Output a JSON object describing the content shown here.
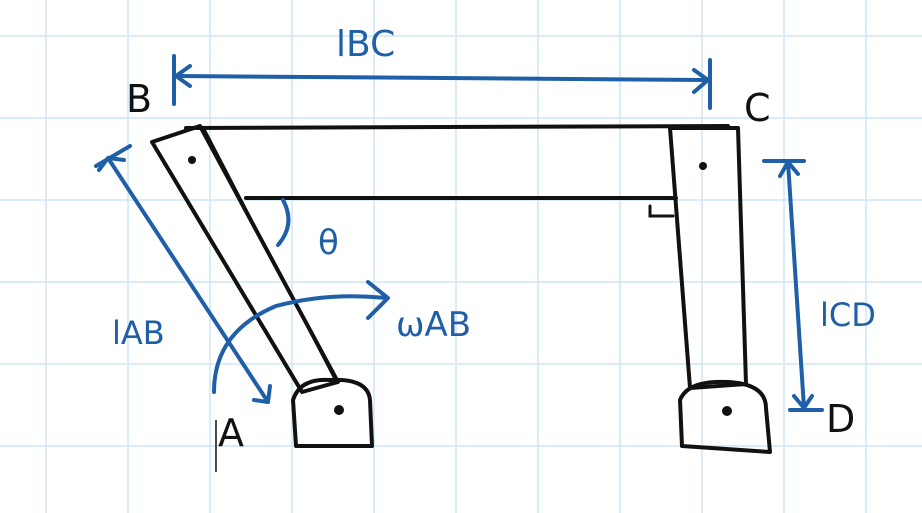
{
  "diagram": {
    "points": {
      "A": "A",
      "B": "B",
      "C": "C",
      "D": "D"
    },
    "dimensions": {
      "bc": "lBC",
      "ab": "lAB",
      "cd": "lCD"
    },
    "angle": "θ",
    "angular_velocity": "ωAB",
    "colors": {
      "grid": "#cfe6f7",
      "ink": "#111111",
      "annotation": "#1f5fa8"
    }
  }
}
